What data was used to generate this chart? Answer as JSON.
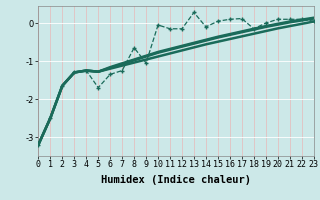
{
  "xlabel": "Humidex (Indice chaleur)",
  "background_color": "#cce8e8",
  "grid_color": "#ffffff",
  "line_color": "#1a6b5a",
  "x_values": [
    0,
    1,
    2,
    3,
    4,
    5,
    6,
    7,
    8,
    9,
    10,
    11,
    12,
    13,
    14,
    15,
    16,
    17,
    18,
    19,
    20,
    21,
    22,
    23
  ],
  "series": [
    {
      "y": [
        -3.2,
        -2.5,
        -1.65,
        -1.3,
        -1.25,
        -1.7,
        -1.35,
        -1.25,
        -0.65,
        -1.05,
        -0.05,
        -0.15,
        -0.15,
        0.28,
        -0.1,
        0.05,
        0.1,
        0.12,
        -0.15,
        0.0,
        0.1,
        0.1,
        0.1,
        0.05
      ],
      "marker": true,
      "linestyle": "--",
      "linewidth": 0.9
    },
    {
      "y": [
        -3.2,
        -2.5,
        -1.65,
        -1.3,
        -1.25,
        -1.28,
        -1.2,
        -1.12,
        -1.04,
        -0.96,
        -0.88,
        -0.8,
        -0.72,
        -0.64,
        -0.56,
        -0.49,
        -0.42,
        -0.35,
        -0.28,
        -0.21,
        -0.14,
        -0.08,
        -0.02,
        0.04
      ],
      "marker": false,
      "linestyle": "-",
      "linewidth": 1.8
    },
    {
      "y": [
        -3.2,
        -2.5,
        -1.65,
        -1.3,
        -1.25,
        -1.28,
        -1.18,
        -1.08,
        -0.98,
        -0.88,
        -0.78,
        -0.7,
        -0.62,
        -0.54,
        -0.46,
        -0.38,
        -0.31,
        -0.24,
        -0.17,
        -0.1,
        -0.04,
        0.02,
        0.07,
        0.12
      ],
      "marker": false,
      "linestyle": "-",
      "linewidth": 1.8
    },
    {
      "y": [
        -3.2,
        -2.5,
        -1.65,
        -1.3,
        -1.25,
        -1.28,
        -1.16,
        -1.06,
        -0.96,
        -0.86,
        -0.76,
        -0.68,
        -0.6,
        -0.52,
        -0.44,
        -0.36,
        -0.29,
        -0.22,
        -0.15,
        -0.08,
        -0.02,
        0.04,
        0.09,
        0.14
      ],
      "marker": false,
      "linestyle": "-",
      "linewidth": 1.8
    }
  ],
  "ylim": [
    -3.5,
    0.45
  ],
  "xlim": [
    0,
    23
  ],
  "yticks": [
    0,
    -1,
    -2,
    -3
  ],
  "xticks": [
    0,
    1,
    2,
    3,
    4,
    5,
    6,
    7,
    8,
    9,
    10,
    11,
    12,
    13,
    14,
    15,
    16,
    17,
    18,
    19,
    20,
    21,
    22,
    23
  ],
  "xtick_labels": [
    "0",
    "1",
    "2",
    "3",
    "4",
    "5",
    "6",
    "7",
    "8",
    "9",
    "10",
    "11",
    "12",
    "13",
    "14",
    "15",
    "16",
    "17",
    "18",
    "19",
    "20",
    "21",
    "22",
    "23"
  ],
  "title_fontsize": 7,
  "xlabel_fontsize": 7.5,
  "tick_fontsize": 6
}
